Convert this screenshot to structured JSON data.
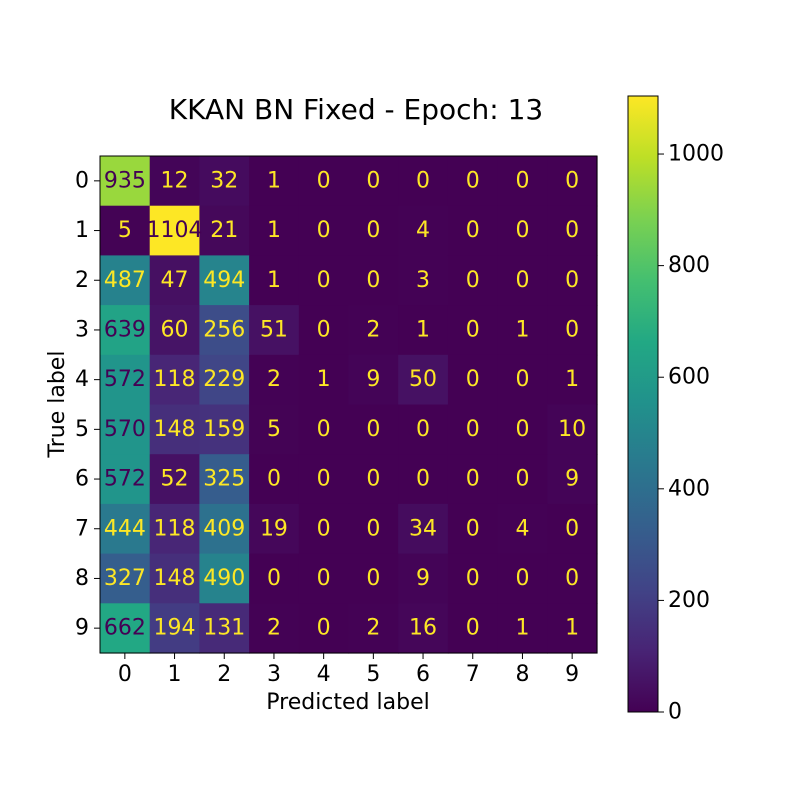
{
  "chart_data": {
    "type": "heatmap",
    "title": "KKAN BN Fixed - Epoch: 13",
    "xlabel": "Predicted label",
    "ylabel": "True label",
    "x_categories": [
      "0",
      "1",
      "2",
      "3",
      "4",
      "5",
      "6",
      "7",
      "8",
      "9"
    ],
    "y_categories": [
      "0",
      "1",
      "2",
      "3",
      "4",
      "5",
      "6",
      "7",
      "8",
      "9"
    ],
    "matrix": [
      [
        935,
        12,
        32,
        1,
        0,
        0,
        0,
        0,
        0,
        0
      ],
      [
        5,
        1104,
        21,
        1,
        0,
        0,
        4,
        0,
        0,
        0
      ],
      [
        487,
        47,
        494,
        1,
        0,
        0,
        3,
        0,
        0,
        0
      ],
      [
        639,
        60,
        256,
        51,
        0,
        2,
        1,
        0,
        1,
        0
      ],
      [
        572,
        118,
        229,
        2,
        1,
        9,
        50,
        0,
        0,
        1
      ],
      [
        570,
        148,
        159,
        5,
        0,
        0,
        0,
        0,
        0,
        10
      ],
      [
        572,
        52,
        325,
        0,
        0,
        0,
        0,
        0,
        0,
        9
      ],
      [
        444,
        118,
        409,
        19,
        0,
        0,
        34,
        0,
        4,
        0
      ],
      [
        327,
        148,
        490,
        0,
        0,
        0,
        9,
        0,
        0,
        0
      ],
      [
        662,
        194,
        131,
        2,
        0,
        2,
        16,
        0,
        1,
        1
      ]
    ],
    "colormap": "viridis",
    "value_range": [
      0,
      1104
    ],
    "colorbar": {
      "ticks": [
        0,
        200,
        400,
        600,
        800,
        1000
      ],
      "tick_labels": [
        "0",
        "200",
        "400",
        "600",
        "800",
        "1000"
      ]
    },
    "text_colors": {
      "light": "#fde725",
      "dark": "#440154"
    },
    "grid": false
  }
}
